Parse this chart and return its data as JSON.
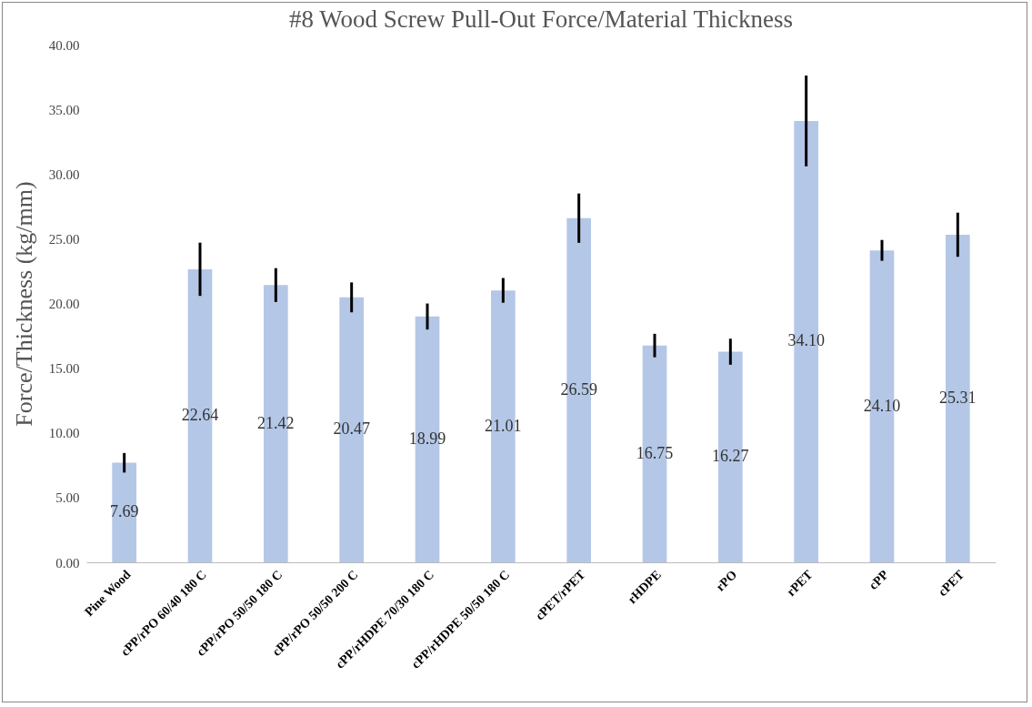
{
  "chart_data": {
    "type": "bar",
    "title": "#8 Wood Screw Pull-Out Force/Material Thickness",
    "ylabel": "Force/Thickness (kg/mm)",
    "categories": [
      "Pine Wood",
      "cPP/rPO 60/40 180 C",
      "cPP/rPO 50/50 180 C",
      "cPP/rPO 50/50 200 C",
      "cPP/rHDPE 70/30 180 C",
      "cPP/rHDPE 50/50 180 C",
      "cPET/rPET",
      "rHDPE",
      "rPO",
      "rPET",
      "cPP",
      "cPET"
    ],
    "values": [
      7.69,
      22.64,
      21.42,
      20.47,
      18.99,
      21.01,
      26.59,
      16.75,
      16.27,
      34.1,
      24.1,
      25.31
    ],
    "errors": [
      0.65,
      1.95,
      1.2,
      1.05,
      0.9,
      0.85,
      1.8,
      0.8,
      0.9,
      3.4,
      0.7,
      1.6
    ],
    "value_labels": [
      "7.69",
      "22.64",
      "21.42",
      "20.47",
      "18.99",
      "21.01",
      "26.59",
      "16.75",
      "16.27",
      "34.10",
      "24.10",
      "25.31"
    ],
    "color": "#b4c7e7",
    "grid": false,
    "ylim": [
      0,
      40
    ],
    "yticks": [
      {
        "value": 0,
        "label": "0.00"
      },
      {
        "value": 5,
        "label": "5.00"
      },
      {
        "value": 10,
        "label": "10.00"
      },
      {
        "value": 15,
        "label": "15.00"
      },
      {
        "value": 20,
        "label": "20.00"
      },
      {
        "value": 25,
        "label": "25.00"
      },
      {
        "value": 30,
        "label": "30.00"
      },
      {
        "value": 35,
        "label": "35.00"
      },
      {
        "value": 40,
        "label": "40.00"
      }
    ]
  }
}
